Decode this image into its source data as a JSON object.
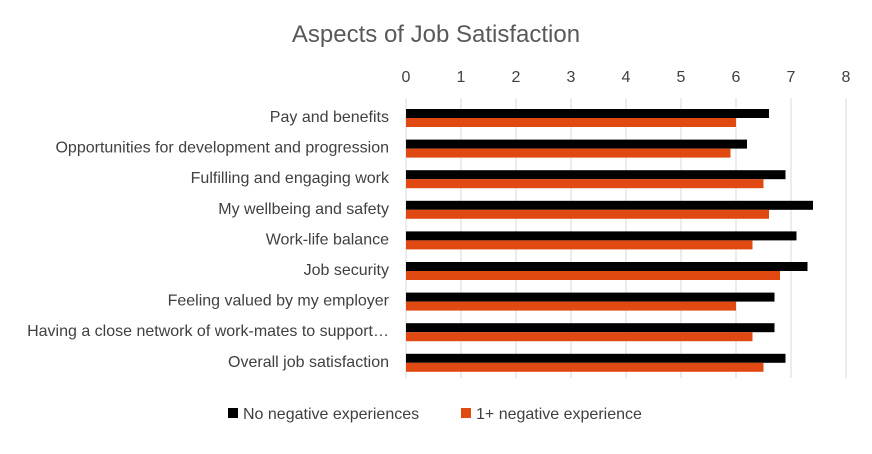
{
  "chart_data": {
    "type": "bar",
    "orientation": "horizontal",
    "title": "Aspects of Job Satisfaction",
    "xlabel": "",
    "ylabel": "",
    "xlim": [
      0,
      8
    ],
    "x_ticks": [
      "0",
      "1",
      "2",
      "3",
      "4",
      "5",
      "6",
      "7",
      "8"
    ],
    "axis_position": "top",
    "grid": true,
    "legend_position": "bottom",
    "categories": [
      "Pay and benefits",
      "Opportunities for development and progression",
      "Fulfilling and engaging work",
      "My wellbeing and safety",
      "Work-life balance",
      "Job security",
      "Feeling valued by my employer",
      "Having a close network of work-mates to support…",
      "Overall job satisfaction"
    ],
    "series": [
      {
        "name": "No negative experiences",
        "color": "#000000",
        "values": [
          6.6,
          6.2,
          6.9,
          7.4,
          7.1,
          7.3,
          6.7,
          6.7,
          6.9
        ]
      },
      {
        "name": "1+ negative experience",
        "color": "#e04a12",
        "values": [
          6.0,
          5.9,
          6.5,
          6.6,
          6.3,
          6.8,
          6.0,
          6.3,
          6.5
        ]
      }
    ]
  },
  "colors": {
    "grid": "#d9d9d9",
    "text": "#404040",
    "title": "#595959"
  }
}
